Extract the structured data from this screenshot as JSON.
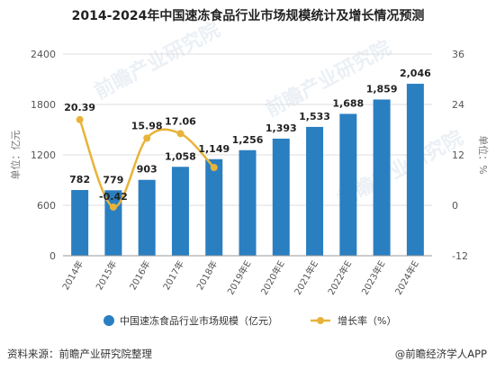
{
  "header": {
    "title": "2014-2024年中国速冻食品行业市场规模统计及增长情况预测"
  },
  "footer": {
    "source": "资料来源：前瞻产业研究院整理",
    "brand": "@前瞻经济学人APP"
  },
  "watermark": "前瞻产业研究院",
  "colors": {
    "bar": "#2a7fc1",
    "line": "#e8b33a",
    "grid": "#dcdcdc"
  },
  "chart_data": {
    "type": "bar",
    "title": "2014-2024年中国速冻食品行业市场规模统计及增长情况预测",
    "categories": [
      "2014年",
      "2015年",
      "2016年",
      "2017年",
      "2018年",
      "2019年E",
      "2020年E",
      "2021年E",
      "2022年E",
      "2023年E",
      "2024年E"
    ],
    "series": [
      {
        "name": "中国速冻食品行业市场规模（亿元）",
        "type": "bar",
        "axis": "left",
        "values": [
          782,
          779,
          903,
          1058,
          1149,
          1256,
          1393,
          1533,
          1688,
          1859,
          2046
        ]
      },
      {
        "name": "增长率（%）",
        "type": "line",
        "axis": "right",
        "values": [
          20.39,
          -0.42,
          15.98,
          17.06,
          9.0,
          null,
          null,
          null,
          null,
          null,
          null
        ],
        "labels": [
          "20.39",
          "-0.42",
          "15.98",
          "17.06",
          null,
          null,
          null,
          null,
          null,
          null,
          null
        ]
      }
    ],
    "ylabel": "单位：亿元",
    "ylabel_right": "单位：%",
    "ylim": [
      0,
      2400
    ],
    "y_ticks": [
      0,
      600,
      1200,
      1800,
      2400
    ],
    "ylim_right": [
      -12,
      36
    ],
    "y_ticks_right": [
      -12,
      0,
      12,
      24,
      36
    ],
    "grid": true,
    "legend_position": "bottom"
  }
}
